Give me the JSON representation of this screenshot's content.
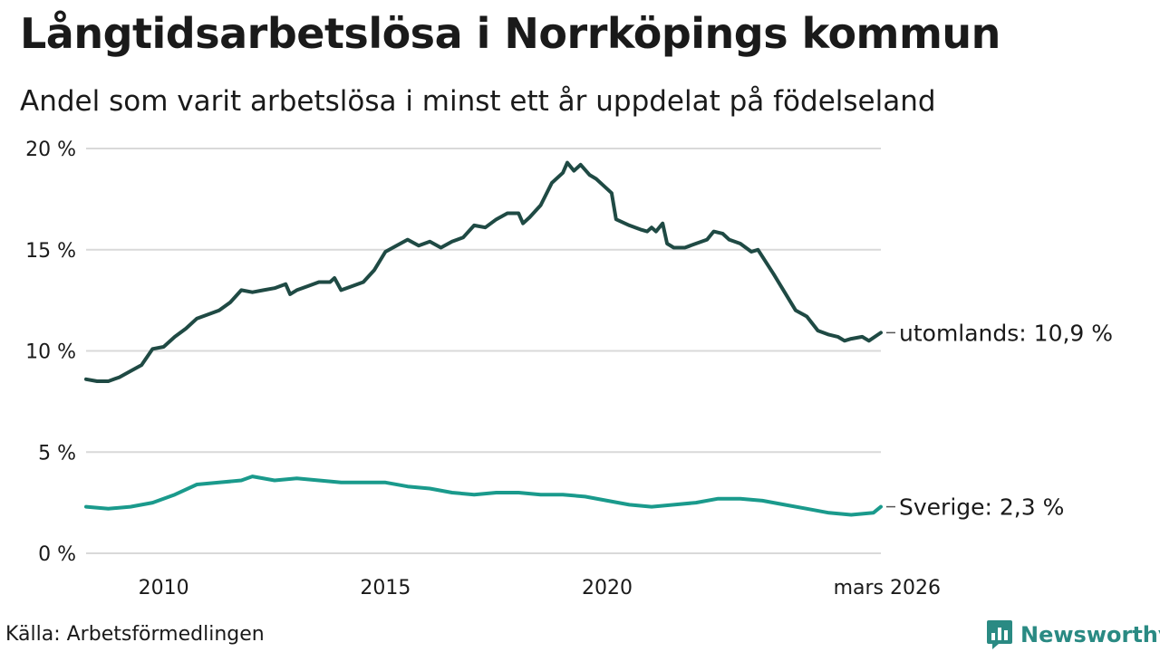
{
  "header": {
    "title": "Långtidsarbetslösa i Norrköpings kommun",
    "subtitle": "Andel som varit arbetslösa i minst ett år uppdelat på födelseland"
  },
  "footer": {
    "source": "Källa: Arbetsförmedlingen",
    "brand": "Newsworthy"
  },
  "colors": {
    "dark": "#1f4a44",
    "teal": "#1a9a8c",
    "grid": "#d9d9d9",
    "text": "#1a1a1a"
  },
  "chart_data": {
    "type": "line",
    "title": "Långtidsarbetslösa i Norrköpings kommun",
    "xlabel": "",
    "ylabel": "",
    "xlim": [
      2008.25,
      2026.17
    ],
    "ylim": [
      0,
      20
    ],
    "grid": true,
    "y_ticks": [
      0,
      5,
      10,
      15,
      20
    ],
    "y_tick_labels": [
      "0 %",
      "5 %",
      "10 %",
      "15 %",
      "20 %"
    ],
    "x_ticks": [
      2010,
      2015,
      2020,
      2026.17
    ],
    "x_tick_labels": [
      "2010",
      "2015",
      "2020",
      "mars 2026"
    ],
    "series": [
      {
        "name": "utomlands",
        "end_label": "utomlands: 10,9 %",
        "points": [
          [
            2008.25,
            8.6
          ],
          [
            2008.5,
            8.5
          ],
          [
            2008.75,
            8.5
          ],
          [
            2009.0,
            8.7
          ],
          [
            2009.25,
            9.0
          ],
          [
            2009.5,
            9.3
          ],
          [
            2009.75,
            10.1
          ],
          [
            2010.0,
            10.2
          ],
          [
            2010.25,
            10.7
          ],
          [
            2010.5,
            11.1
          ],
          [
            2010.75,
            11.6
          ],
          [
            2011.0,
            11.8
          ],
          [
            2011.25,
            12.0
          ],
          [
            2011.5,
            12.4
          ],
          [
            2011.75,
            13.0
          ],
          [
            2012.0,
            12.9
          ],
          [
            2012.25,
            13.0
          ],
          [
            2012.5,
            13.1
          ],
          [
            2012.75,
            13.3
          ],
          [
            2012.85,
            12.8
          ],
          [
            2013.0,
            13.0
          ],
          [
            2013.25,
            13.2
          ],
          [
            2013.5,
            13.4
          ],
          [
            2013.75,
            13.4
          ],
          [
            2013.85,
            13.6
          ],
          [
            2014.0,
            13.0
          ],
          [
            2014.25,
            13.2
          ],
          [
            2014.5,
            13.4
          ],
          [
            2014.75,
            14.0
          ],
          [
            2015.0,
            14.9
          ],
          [
            2015.25,
            15.2
          ],
          [
            2015.5,
            15.5
          ],
          [
            2015.75,
            15.2
          ],
          [
            2016.0,
            15.4
          ],
          [
            2016.25,
            15.1
          ],
          [
            2016.5,
            15.4
          ],
          [
            2016.75,
            15.6
          ],
          [
            2017.0,
            16.2
          ],
          [
            2017.25,
            16.1
          ],
          [
            2017.5,
            16.5
          ],
          [
            2017.75,
            16.8
          ],
          [
            2018.0,
            16.8
          ],
          [
            2018.1,
            16.3
          ],
          [
            2018.25,
            16.6
          ],
          [
            2018.5,
            17.2
          ],
          [
            2018.75,
            18.3
          ],
          [
            2019.0,
            18.8
          ],
          [
            2019.1,
            19.3
          ],
          [
            2019.25,
            18.9
          ],
          [
            2019.4,
            19.2
          ],
          [
            2019.6,
            18.7
          ],
          [
            2019.75,
            18.5
          ],
          [
            2019.9,
            18.2
          ],
          [
            2020.1,
            17.8
          ],
          [
            2020.2,
            16.5
          ],
          [
            2020.5,
            16.2
          ],
          [
            2020.75,
            16.0
          ],
          [
            2020.9,
            15.9
          ],
          [
            2021.0,
            16.1
          ],
          [
            2021.1,
            15.9
          ],
          [
            2021.25,
            16.3
          ],
          [
            2021.35,
            15.3
          ],
          [
            2021.5,
            15.1
          ],
          [
            2021.75,
            15.1
          ],
          [
            2022.0,
            15.3
          ],
          [
            2022.25,
            15.5
          ],
          [
            2022.4,
            15.9
          ],
          [
            2022.6,
            15.8
          ],
          [
            2022.75,
            15.5
          ],
          [
            2023.0,
            15.3
          ],
          [
            2023.25,
            14.9
          ],
          [
            2023.4,
            15.0
          ],
          [
            2023.75,
            13.8
          ],
          [
            2024.0,
            12.9
          ],
          [
            2024.25,
            12.0
          ],
          [
            2024.5,
            11.7
          ],
          [
            2024.75,
            11.0
          ],
          [
            2025.0,
            10.8
          ],
          [
            2025.2,
            10.7
          ],
          [
            2025.35,
            10.5
          ],
          [
            2025.5,
            10.6
          ],
          [
            2025.75,
            10.7
          ],
          [
            2025.9,
            10.5
          ],
          [
            2026.17,
            10.9
          ]
        ]
      },
      {
        "name": "Sverige",
        "end_label": "Sverige:  2,3 %",
        "points": [
          [
            2008.25,
            2.3
          ],
          [
            2008.75,
            2.2
          ],
          [
            2009.25,
            2.3
          ],
          [
            2009.75,
            2.5
          ],
          [
            2010.25,
            2.9
          ],
          [
            2010.75,
            3.4
          ],
          [
            2011.25,
            3.5
          ],
          [
            2011.75,
            3.6
          ],
          [
            2012.0,
            3.8
          ],
          [
            2012.5,
            3.6
          ],
          [
            2013.0,
            3.7
          ],
          [
            2013.5,
            3.6
          ],
          [
            2014.0,
            3.5
          ],
          [
            2014.5,
            3.5
          ],
          [
            2015.0,
            3.5
          ],
          [
            2015.5,
            3.3
          ],
          [
            2016.0,
            3.2
          ],
          [
            2016.5,
            3.0
          ],
          [
            2017.0,
            2.9
          ],
          [
            2017.5,
            3.0
          ],
          [
            2018.0,
            3.0
          ],
          [
            2018.5,
            2.9
          ],
          [
            2019.0,
            2.9
          ],
          [
            2019.5,
            2.8
          ],
          [
            2020.0,
            2.6
          ],
          [
            2020.5,
            2.4
          ],
          [
            2021.0,
            2.3
          ],
          [
            2021.5,
            2.4
          ],
          [
            2022.0,
            2.5
          ],
          [
            2022.5,
            2.7
          ],
          [
            2023.0,
            2.7
          ],
          [
            2023.5,
            2.6
          ],
          [
            2024.0,
            2.4
          ],
          [
            2024.5,
            2.2
          ],
          [
            2025.0,
            2.0
          ],
          [
            2025.5,
            1.9
          ],
          [
            2026.0,
            2.0
          ],
          [
            2026.17,
            2.3
          ]
        ]
      }
    ]
  }
}
